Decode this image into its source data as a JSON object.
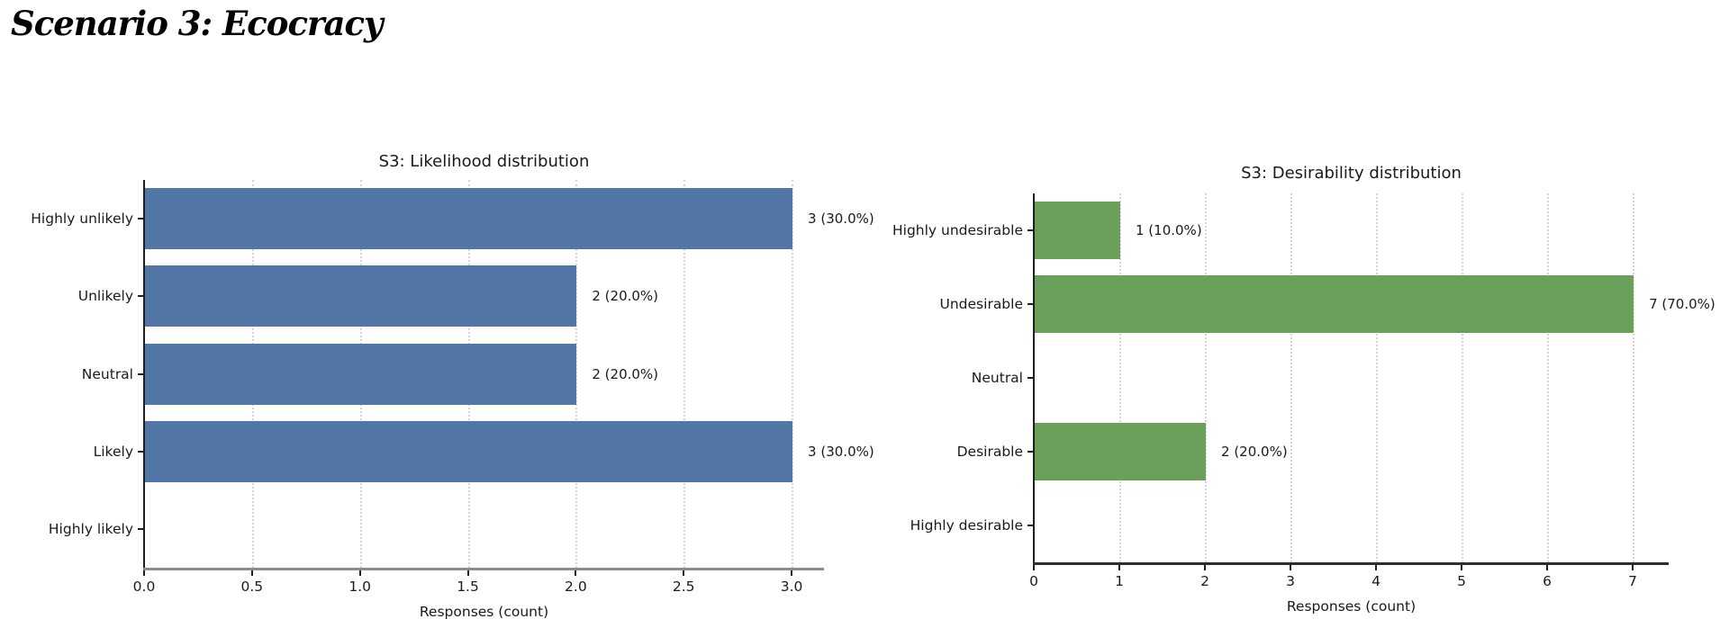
{
  "page": {
    "title": "Scenario 3: Ecocracy"
  },
  "chart_data": [
    {
      "type": "bar",
      "orientation": "horizontal",
      "title": "S3: Likelihood distribution",
      "xlabel": "Responses (count)",
      "categories": [
        "Highly unlikely",
        "Unlikely",
        "Neutral",
        "Likely",
        "Highly likely"
      ],
      "values": [
        3,
        2,
        2,
        3,
        0
      ],
      "annotations": [
        "3 (30.0%)",
        "2 (20.0%)",
        "2 (20.0%)",
        "3 (30.0%)",
        ""
      ],
      "percentages": [
        30.0,
        20.0,
        20.0,
        30.0,
        0.0
      ],
      "xlim": [
        0,
        3.15
      ],
      "xticks": [
        0,
        0.5,
        1,
        1.5,
        2,
        2.5,
        3
      ],
      "xtick_labels": [
        "0.0",
        "0.5",
        "1.0",
        "1.5",
        "2.0",
        "2.5",
        "3.0"
      ],
      "bar_color": "#5276a6",
      "grid": "vertical-dotted",
      "legend": "none"
    },
    {
      "type": "bar",
      "orientation": "horizontal",
      "title": "S3: Desirability distribution",
      "xlabel": "Responses (count)",
      "categories": [
        "Highly undesirable",
        "Undesirable",
        "Neutral",
        "Desirable",
        "Highly desirable"
      ],
      "values": [
        1,
        7,
        0,
        2,
        0
      ],
      "annotations": [
        "1 (10.0%)",
        "7 (70.0%)",
        "",
        "2 (20.0%)",
        ""
      ],
      "percentages": [
        10.0,
        70.0,
        0.0,
        20.0,
        0.0
      ],
      "xlim": [
        0,
        7.42
      ],
      "xticks": [
        0,
        1,
        2,
        3,
        4,
        5,
        6,
        7
      ],
      "xtick_labels": [
        "0",
        "1",
        "2",
        "3",
        "4",
        "5",
        "6",
        "7"
      ],
      "bar_color": "#6aa05a",
      "grid": "vertical-dotted",
      "legend": "none"
    }
  ]
}
